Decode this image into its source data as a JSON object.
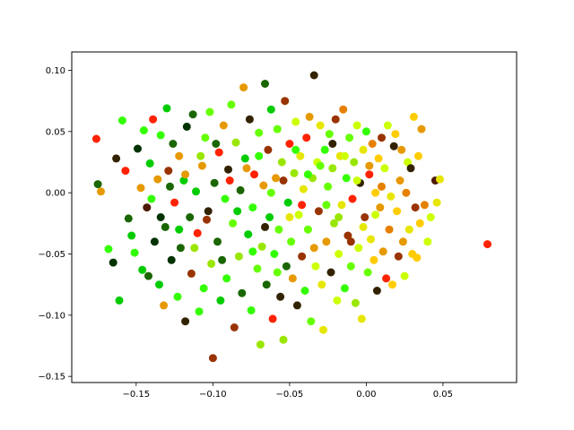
{
  "chart_data": {
    "type": "scatter",
    "title": "",
    "xlabel": "",
    "ylabel": "",
    "xlim": [
      -0.192,
      0.098
    ],
    "ylim": [
      -0.155,
      0.115
    ],
    "xticks": [
      -0.15,
      -0.1,
      -0.05,
      0.0,
      0.05
    ],
    "xtick_labels": [
      "−0.15",
      "−0.10",
      "−0.05",
      "0.00",
      "0.05"
    ],
    "yticks": [
      -0.15,
      -0.1,
      -0.05,
      0.0,
      0.05,
      0.1
    ],
    "ytick_labels": [
      "−0.15",
      "−0.10",
      "−0.05",
      "0.00",
      "0.05",
      "0.10"
    ],
    "grid": false,
    "legend": false,
    "point_color_rule": "color varies with position: dark green / bright green on the left and centre, yellow on the right, with orange and red points mixed throughout",
    "palette": [
      "#003300",
      "#1a6600",
      "#00cc00",
      "#33ff00",
      "#66ff00",
      "#99e600",
      "#ccff00",
      "#e6e600",
      "#ffcc00",
      "#e69900",
      "#e68000",
      "#cc4400",
      "#ff2200",
      "#993300",
      "#4d1a00",
      "#332200"
    ],
    "series": [
      {
        "name": "",
        "points": [
          [
            -0.176,
            0.044
          ],
          [
            -0.175,
            0.007
          ],
          [
            -0.173,
            0.001
          ],
          [
            -0.168,
            -0.046
          ],
          [
            -0.165,
            -0.057
          ],
          [
            -0.163,
            0.028
          ],
          [
            -0.161,
            -0.088
          ],
          [
            -0.159,
            0.059
          ],
          [
            -0.157,
            0.018
          ],
          [
            -0.155,
            -0.021
          ],
          [
            -0.153,
            -0.035
          ],
          [
            -0.151,
            -0.049
          ],
          [
            -0.149,
            0.036
          ],
          [
            -0.147,
            0.004
          ],
          [
            -0.146,
            -0.063
          ],
          [
            -0.145,
            0.051
          ],
          [
            -0.143,
            -0.012
          ],
          [
            -0.142,
            -0.068
          ],
          [
            -0.141,
            0.024
          ],
          [
            -0.139,
            0.06
          ],
          [
            -0.138,
            -0.04
          ],
          [
            -0.136,
            0.011
          ],
          [
            -0.135,
            -0.075
          ],
          [
            -0.134,
            0.047
          ],
          [
            -0.132,
            -0.092
          ],
          [
            -0.131,
            -0.028
          ],
          [
            -0.13,
            0.069
          ],
          [
            -0.129,
            0.018
          ],
          [
            -0.127,
            -0.055
          ],
          [
            -0.126,
            0.04
          ],
          [
            -0.125,
            -0.008
          ],
          [
            -0.123,
            -0.085
          ],
          [
            -0.122,
            0.03
          ],
          [
            -0.121,
            -0.045
          ],
          [
            -0.119,
            0.01
          ],
          [
            -0.118,
            -0.105
          ],
          [
            -0.117,
            0.054
          ],
          [
            -0.115,
            -0.02
          ],
          [
            -0.114,
            -0.066
          ],
          [
            -0.113,
            0.064
          ],
          [
            -0.111,
            0.001
          ],
          [
            -0.11,
            -0.033
          ],
          [
            -0.109,
            -0.097
          ],
          [
            -0.107,
            0.022
          ],
          [
            -0.106,
            -0.078
          ],
          [
            -0.105,
            0.045
          ],
          [
            -0.103,
            -0.015
          ],
          [
            -0.102,
            0.066
          ],
          [
            -0.101,
            -0.058
          ],
          [
            -0.1,
            -0.135
          ],
          [
            -0.099,
            0.008
          ],
          [
            -0.097,
            -0.04
          ],
          [
            -0.096,
            0.033
          ],
          [
            -0.095,
            -0.088
          ],
          [
            -0.093,
            0.055
          ],
          [
            -0.092,
            -0.005
          ],
          [
            -0.091,
            -0.07
          ],
          [
            -0.09,
            0.019
          ],
          [
            -0.088,
            0.072
          ],
          [
            -0.087,
            -0.025
          ],
          [
            -0.086,
            -0.11
          ],
          [
            -0.085,
            0.041
          ],
          [
            -0.083,
            -0.052
          ],
          [
            -0.082,
            0.002
          ],
          [
            -0.081,
            -0.082
          ],
          [
            -0.08,
            0.086
          ],
          [
            -0.079,
            0.028
          ],
          [
            -0.077,
            -0.034
          ],
          [
            -0.076,
            0.06
          ],
          [
            -0.075,
            -0.096
          ],
          [
            -0.074,
            -0.012
          ],
          [
            -0.073,
            0.015
          ],
          [
            -0.071,
            -0.062
          ],
          [
            -0.07,
            0.049
          ],
          [
            -0.069,
            -0.124
          ],
          [
            -0.068,
            -0.044
          ],
          [
            -0.067,
            0.006
          ],
          [
            -0.066,
            0.089
          ],
          [
            -0.065,
            -0.075
          ],
          [
            -0.064,
            0.035
          ],
          [
            -0.063,
            -0.02
          ],
          [
            -0.062,
            0.068
          ],
          [
            -0.061,
            -0.103
          ],
          [
            -0.06,
            -0.05
          ],
          [
            -0.059,
            0.012
          ],
          [
            -0.058,
            0.052
          ],
          [
            -0.057,
            -0.03
          ],
          [
            -0.056,
            -0.085
          ],
          [
            -0.055,
            0.025
          ],
          [
            -0.054,
            -0.12
          ],
          [
            -0.053,
            0.075
          ],
          [
            -0.052,
            -0.06
          ],
          [
            -0.051,
            -0.008
          ],
          [
            -0.05,
            0.04
          ],
          [
            -0.049,
            -0.04
          ],
          [
            -0.048,
            -0.07
          ],
          [
            -0.047,
            0.016
          ],
          [
            -0.046,
            0.058
          ],
          [
            -0.045,
            -0.092
          ],
          [
            -0.044,
            -0.018
          ],
          [
            -0.043,
            0.03
          ],
          [
            -0.042,
            -0.052
          ],
          [
            -0.041,
            0.003
          ],
          [
            -0.04,
            -0.08
          ],
          [
            -0.039,
            0.045
          ],
          [
            -0.038,
            -0.03
          ],
          [
            -0.037,
            0.062
          ],
          [
            -0.036,
            -0.105
          ],
          [
            -0.035,
            0.012
          ],
          [
            -0.034,
            0.096
          ],
          [
            -0.033,
            -0.06
          ],
          [
            -0.032,
            0.025
          ],
          [
            -0.031,
            -0.015
          ],
          [
            -0.03,
            0.055
          ],
          [
            -0.029,
            -0.075
          ],
          [
            -0.028,
            -0.112
          ],
          [
            -0.027,
            0.035
          ],
          [
            -0.026,
            -0.04
          ],
          [
            -0.025,
            0.005
          ],
          [
            -0.024,
            0.048
          ],
          [
            -0.023,
            -0.065
          ],
          [
            -0.022,
            0.02
          ],
          [
            -0.021,
            -0.025
          ],
          [
            -0.02,
            0.06
          ],
          [
            -0.019,
            -0.088
          ],
          [
            -0.018,
            -0.05
          ],
          [
            -0.017,
            0.03
          ],
          [
            -0.016,
            -0.01
          ],
          [
            -0.015,
            0.068
          ],
          [
            -0.014,
            -0.078
          ],
          [
            -0.013,
            0.012
          ],
          [
            -0.012,
            -0.035
          ],
          [
            -0.011,
            0.045
          ],
          [
            -0.01,
            -0.06
          ],
          [
            -0.009,
            -0.005
          ],
          [
            -0.008,
            0.025
          ],
          [
            -0.007,
            -0.09
          ],
          [
            -0.006,
            0.055
          ],
          [
            -0.005,
            -0.045
          ],
          [
            -0.004,
            0.008
          ],
          [
            -0.003,
            -0.103
          ],
          [
            -0.002,
            0.035
          ],
          [
            -0.001,
            -0.02
          ],
          [
            0.0,
            0.05
          ],
          [
            0.001,
            -0.065
          ],
          [
            0.002,
            0.015
          ],
          [
            0.003,
            -0.038
          ],
          [
            0.004,
            0.04
          ],
          [
            0.005,
            -0.055
          ],
          [
            0.006,
            0.0
          ],
          [
            0.007,
            -0.08
          ],
          [
            0.008,
            0.028
          ],
          [
            0.009,
            -0.012
          ],
          [
            0.01,
            0.045
          ],
          [
            0.011,
            -0.048
          ],
          [
            0.012,
            0.02
          ],
          [
            0.013,
            -0.07
          ],
          [
            0.014,
            0.055
          ],
          [
            0.015,
            -0.03
          ],
          [
            0.016,
            -0.003
          ],
          [
            0.017,
            -0.075
          ],
          [
            0.018,
            0.038
          ],
          [
            0.019,
            0.048
          ],
          [
            0.02,
            -0.015
          ],
          [
            0.021,
            -0.052
          ],
          [
            0.022,
            0.01
          ],
          [
            0.023,
            0.035
          ],
          [
            0.024,
            -0.04
          ],
          [
            0.025,
            -0.068
          ],
          [
            0.026,
            0.0
          ],
          [
            0.027,
            0.025
          ],
          [
            0.028,
            -0.03
          ],
          [
            0.029,
            0.02
          ],
          [
            0.03,
            -0.05
          ],
          [
            0.031,
            0.062
          ],
          [
            0.032,
            -0.012
          ],
          [
            0.033,
            -0.053
          ],
          [
            0.034,
            0.03
          ],
          [
            0.035,
            -0.025
          ],
          [
            0.036,
            0.052
          ],
          [
            0.038,
            -0.01
          ],
          [
            0.04,
            -0.04
          ],
          [
            0.042,
            -0.02
          ],
          [
            0.045,
            0.01
          ],
          [
            0.046,
            -0.008
          ],
          [
            0.048,
            0.011
          ],
          [
            0.079,
            -0.042
          ],
          [
            -0.14,
            -0.005
          ],
          [
            -0.134,
            -0.02
          ],
          [
            -0.128,
            0.005
          ],
          [
            -0.122,
            -0.03
          ],
          [
            -0.118,
            0.015
          ],
          [
            -0.112,
            -0.045
          ],
          [
            -0.108,
            0.03
          ],
          [
            -0.104,
            -0.022
          ],
          [
            -0.098,
            0.04
          ],
          [
            -0.094,
            -0.055
          ],
          [
            -0.089,
            0.01
          ],
          [
            -0.084,
            -0.015
          ],
          [
            -0.078,
            0.02
          ],
          [
            -0.074,
            -0.048
          ],
          [
            -0.07,
            0.03
          ],
          [
            -0.066,
            -0.028
          ],
          [
            -0.062,
            0.0
          ],
          [
            -0.058,
            -0.065
          ],
          [
            -0.054,
            0.01
          ],
          [
            -0.05,
            -0.02
          ],
          [
            -0.046,
            0.035
          ],
          [
            -0.042,
            -0.01
          ],
          [
            -0.038,
            0.015
          ],
          [
            -0.034,
            -0.045
          ],
          [
            -0.03,
            0.022
          ],
          [
            -0.026,
            -0.01
          ],
          [
            -0.022,
            0.04
          ],
          [
            -0.018,
            -0.02
          ],
          [
            -0.014,
            0.03
          ],
          [
            -0.01,
            -0.04
          ],
          [
            -0.006,
            0.01
          ],
          [
            -0.002,
            -0.028
          ],
          [
            0.002,
            0.022
          ],
          [
            0.006,
            -0.018
          ],
          [
            0.01,
            0.005
          ]
        ]
      }
    ]
  }
}
